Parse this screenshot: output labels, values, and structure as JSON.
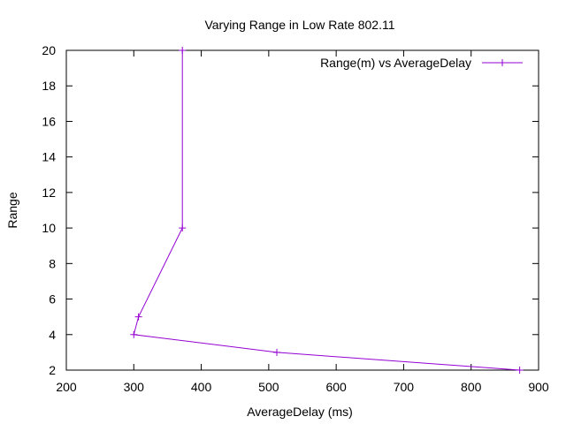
{
  "chart_data": {
    "type": "line",
    "title": "Varying Range in Low Rate 802.11",
    "xlabel": "AverageDelay (ms)",
    "ylabel": "Range",
    "xlim": [
      200,
      900
    ],
    "ylim": [
      2,
      20
    ],
    "xticks": [
      200,
      300,
      400,
      500,
      600,
      700,
      800,
      900
    ],
    "yticks": [
      2,
      4,
      6,
      8,
      10,
      12,
      14,
      16,
      18,
      20
    ],
    "grid": false,
    "legend_position": "top-right",
    "series": [
      {
        "name": "Range(m) vs AverageDelay",
        "color": "#9400d3",
        "marker": "plus",
        "x": [
          872,
          512,
          300,
          307,
          372,
          372
        ],
        "y": [
          2,
          3,
          4,
          5,
          10,
          20
        ]
      }
    ]
  }
}
